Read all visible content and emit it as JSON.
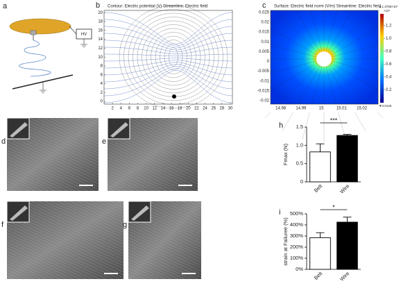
{
  "panels": {
    "a": {
      "label": "a",
      "hv": "HV"
    },
    "d": {
      "label": "d"
    },
    "e": {
      "label": "e"
    },
    "f": {
      "label": "f"
    },
    "g": {
      "label": "g"
    }
  },
  "chart_data": [
    {
      "type": "contour",
      "label": "b",
      "title": "Contour: Electric potential (V)  Streamline: Electric field",
      "xlim": [
        0,
        30.5
      ],
      "xticks": [
        2,
        4,
        6,
        8,
        10,
        12,
        14,
        16,
        18,
        20,
        22,
        24,
        26,
        28,
        30
      ],
      "ylim": [
        -0.6,
        20.5
      ],
      "yticks": [
        0,
        2,
        4,
        6,
        8,
        10,
        12,
        14,
        16,
        18,
        20
      ]
    },
    {
      "type": "surface",
      "label": "c",
      "title": "Surface: Electric field norm (V/m)  Streamline: Electric field",
      "xlim": [
        14.975,
        15.028
      ],
      "xticks": [
        14.98,
        14.99,
        15,
        15.01,
        15.02
      ],
      "ylim": [
        -0.0218,
        0.026
      ],
      "yticks": [
        -0.02,
        -0.015,
        -0.01,
        -0.005,
        0,
        0.005,
        0.01,
        0.015,
        0.02,
        0.025
      ],
      "colorbar": {
        "max_label": "▲1.3758×10⁷",
        "min_label": "▼0.0126",
        "exponent": "×10⁷",
        "lim": [
          0,
          1.38
        ],
        "ticks": [
          0.2,
          0.4,
          0.6,
          0.8,
          {
            "value": 1,
            "label": "1.0"
          },
          1.2
        ]
      }
    },
    {
      "type": "bar",
      "label": "h",
      "ylabel": "Fmax (N)",
      "categories": [
        "Belt",
        "Wire"
      ],
      "values": [
        0.82,
        1.27
      ],
      "errors": [
        0.22,
        0.03
      ],
      "colors": [
        "#ffffff",
        "#000000"
      ],
      "ylim": [
        0,
        1.5
      ],
      "yticks": [
        0,
        0.5,
        {
          "value": 1,
          "label": "1.0"
        },
        1.5
      ],
      "significance": "***"
    },
    {
      "type": "bar",
      "label": "i",
      "ylabel": "strain at Failuree (%)",
      "categories": [
        "Belt",
        "Wire"
      ],
      "values": [
        285,
        425
      ],
      "errors": [
        45,
        45
      ],
      "colors": [
        "#ffffff",
        "#000000"
      ],
      "ylim": [
        0,
        500
      ],
      "yticks": [
        {
          "value": 0,
          "label": "0%"
        },
        {
          "value": 100,
          "label": "100%"
        },
        {
          "value": 200,
          "label": "200%"
        },
        {
          "value": 300,
          "label": "300%"
        },
        {
          "value": 400,
          "label": "400%"
        },
        {
          "value": 500,
          "label": "500%"
        }
      ],
      "significance": "*"
    }
  ]
}
